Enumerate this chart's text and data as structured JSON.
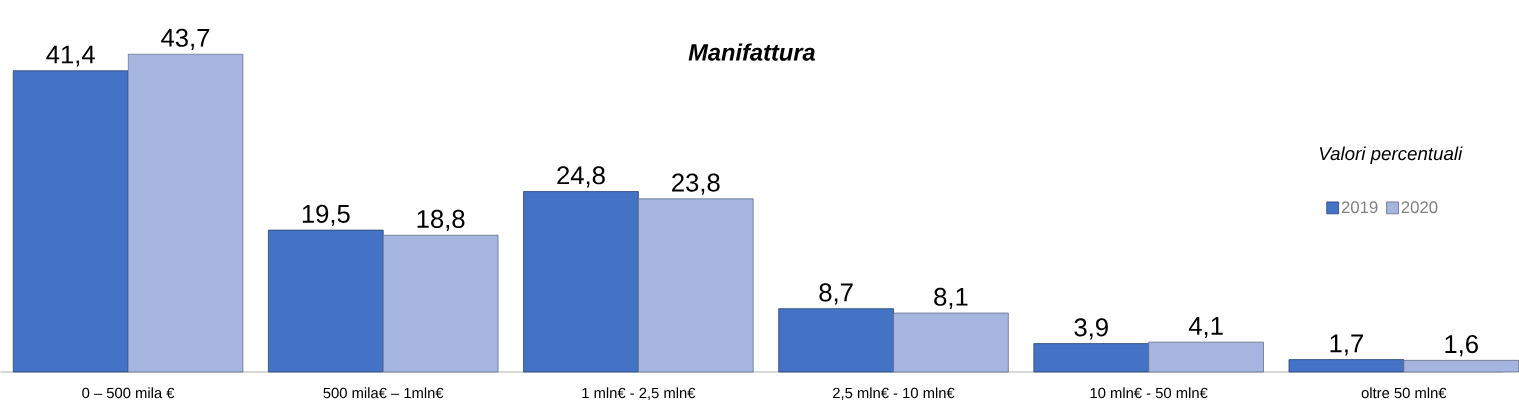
{
  "chart_data": {
    "type": "bar",
    "title": "Manifattura",
    "categories": [
      "0 – 500 mila €",
      "500 mila€ – 1mln€",
      "1 mln€ - 2,5 mln€",
      "2,5 mln€ - 10 mln€",
      "10 mln€ - 50 mln€",
      "oltre 50 mln€"
    ],
    "series": [
      {
        "name": "2019",
        "color": "#4472c4",
        "values": [
          41.4,
          19.5,
          24.8,
          8.7,
          3.9,
          1.7
        ],
        "value_labels": [
          "41,4",
          "19,5",
          "24,8",
          "8,7",
          "3,9",
          "1,7"
        ]
      },
      {
        "name": "2020",
        "color": "#a5b5e0",
        "values": [
          43.7,
          18.8,
          23.8,
          8.1,
          4.1,
          1.6
        ],
        "value_labels": [
          "43,7",
          "18,8",
          "23,8",
          "8,1",
          "4,1",
          "1,6"
        ]
      }
    ],
    "legend": "right",
    "annotations": [
      "Valori percentuali"
    ]
  }
}
